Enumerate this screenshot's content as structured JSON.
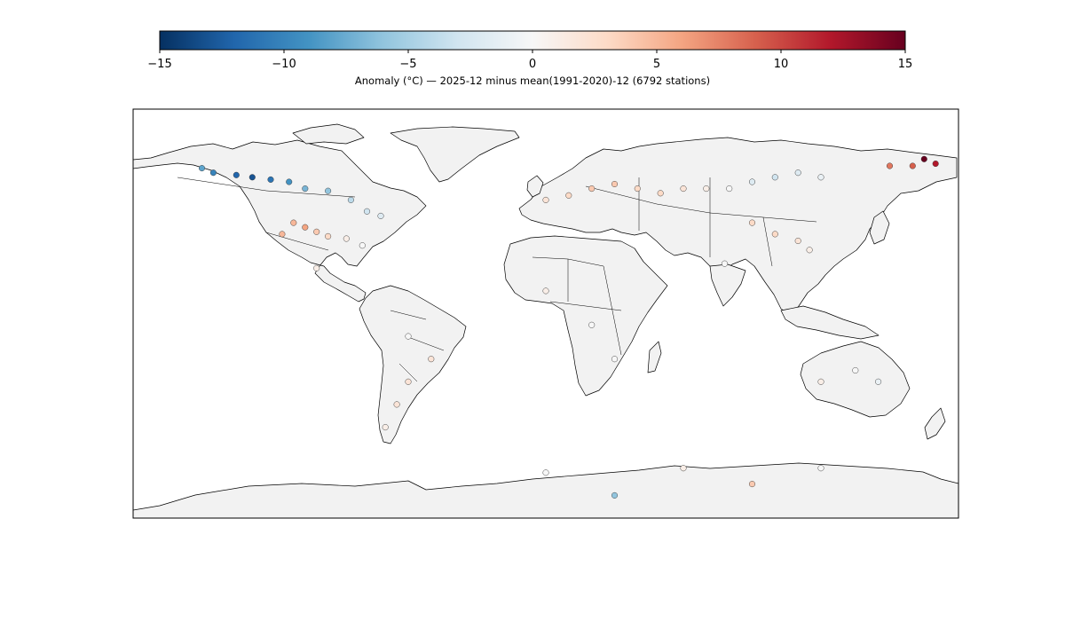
{
  "colorbar": {
    "label": "Anomaly (°C) — 2025-12 minus mean(1991-2020)-12 (6792 stations)",
    "min": -15,
    "max": 15,
    "ticks": [
      "−15",
      "−10",
      "−5",
      "0",
      "5",
      "10",
      "15"
    ],
    "tick_values": [
      -15,
      -10,
      -5,
      0,
      5,
      10,
      15
    ],
    "colormap": "RdBu_r",
    "colors": {
      "low": "#053061",
      "mid": "#f7f7f7",
      "high": "#67001f"
    }
  },
  "chart_data": {
    "type": "scatter",
    "projection": "plate-carree",
    "xlim": [
      -180,
      180
    ],
    "ylim": [
      -90,
      90
    ],
    "land_color": "#f2f2f2",
    "ocean_color": "#ffffff",
    "station_count": 6792,
    "x_unit": "longitude (°)",
    "y_unit": "latitude (°)",
    "value_unit": "°C anomaly",
    "stations_sample": [
      {
        "lon": -150,
        "lat": 64,
        "anom": -8
      },
      {
        "lon": -145,
        "lat": 62,
        "anom": -10
      },
      {
        "lon": -135,
        "lat": 61,
        "anom": -12
      },
      {
        "lon": -128,
        "lat": 60,
        "anom": -13
      },
      {
        "lon": -120,
        "lat": 59,
        "anom": -11
      },
      {
        "lon": -112,
        "lat": 58,
        "anom": -9
      },
      {
        "lon": -105,
        "lat": 55,
        "anom": -7
      },
      {
        "lon": -95,
        "lat": 54,
        "anom": -6
      },
      {
        "lon": -85,
        "lat": 50,
        "anom": -4
      },
      {
        "lon": -78,
        "lat": 45,
        "anom": -3
      },
      {
        "lon": -72,
        "lat": 43,
        "anom": -2
      },
      {
        "lon": -110,
        "lat": 40,
        "anom": 5
      },
      {
        "lon": -105,
        "lat": 38,
        "anom": 6
      },
      {
        "lon": -100,
        "lat": 36,
        "anom": 4
      },
      {
        "lon": -115,
        "lat": 35,
        "anom": 5
      },
      {
        "lon": -95,
        "lat": 34,
        "anom": 3
      },
      {
        "lon": -87,
        "lat": 33,
        "anom": 1
      },
      {
        "lon": -80,
        "lat": 30,
        "anom": 0
      },
      {
        "lon": -100,
        "lat": 20,
        "anom": 1
      },
      {
        "lon": -60,
        "lat": -10,
        "anom": 0
      },
      {
        "lon": -50,
        "lat": -20,
        "anom": 2
      },
      {
        "lon": -60,
        "lat": -30,
        "anom": 2
      },
      {
        "lon": -65,
        "lat": -40,
        "anom": 2
      },
      {
        "lon": -70,
        "lat": -50,
        "anom": 1
      },
      {
        "lon": 0,
        "lat": 50,
        "anom": 2
      },
      {
        "lon": 10,
        "lat": 52,
        "anom": 3
      },
      {
        "lon": 20,
        "lat": 55,
        "anom": 4
      },
      {
        "lon": 30,
        "lat": 57,
        "anom": 4
      },
      {
        "lon": 40,
        "lat": 55,
        "anom": 3
      },
      {
        "lon": 50,
        "lat": 53,
        "anom": 3
      },
      {
        "lon": 60,
        "lat": 55,
        "anom": 2
      },
      {
        "lon": 70,
        "lat": 55,
        "anom": 1
      },
      {
        "lon": 80,
        "lat": 55,
        "anom": 0
      },
      {
        "lon": 90,
        "lat": 58,
        "anom": -2
      },
      {
        "lon": 100,
        "lat": 60,
        "anom": -3
      },
      {
        "lon": 110,
        "lat": 62,
        "anom": -2
      },
      {
        "lon": 120,
        "lat": 60,
        "anom": -1
      },
      {
        "lon": 90,
        "lat": 40,
        "anom": 3
      },
      {
        "lon": 100,
        "lat": 35,
        "anom": 3
      },
      {
        "lon": 110,
        "lat": 32,
        "anom": 2
      },
      {
        "lon": 115,
        "lat": 28,
        "anom": 1
      },
      {
        "lon": 78,
        "lat": 22,
        "anom": 0
      },
      {
        "lon": 150,
        "lat": 65,
        "anom": 8
      },
      {
        "lon": 160,
        "lat": 65,
        "anom": 9
      },
      {
        "lon": 170,
        "lat": 66,
        "anom": 12
      },
      {
        "lon": 165,
        "lat": 68,
        "anom": 15
      },
      {
        "lon": 0,
        "lat": 10,
        "anom": 1
      },
      {
        "lon": 20,
        "lat": -5,
        "anom": 0
      },
      {
        "lon": 30,
        "lat": -20,
        "anom": 0
      },
      {
        "lon": 135,
        "lat": -25,
        "anom": 0
      },
      {
        "lon": 145,
        "lat": -30,
        "anom": -1
      },
      {
        "lon": 120,
        "lat": -30,
        "anom": 1
      },
      {
        "lon": 0,
        "lat": -70,
        "anom": 0
      },
      {
        "lon": 60,
        "lat": -68,
        "anom": 1
      },
      {
        "lon": 120,
        "lat": -68,
        "anom": 0
      },
      {
        "lon": 30,
        "lat": -80,
        "anom": -6
      },
      {
        "lon": 90,
        "lat": -75,
        "anom": 4
      }
    ]
  }
}
